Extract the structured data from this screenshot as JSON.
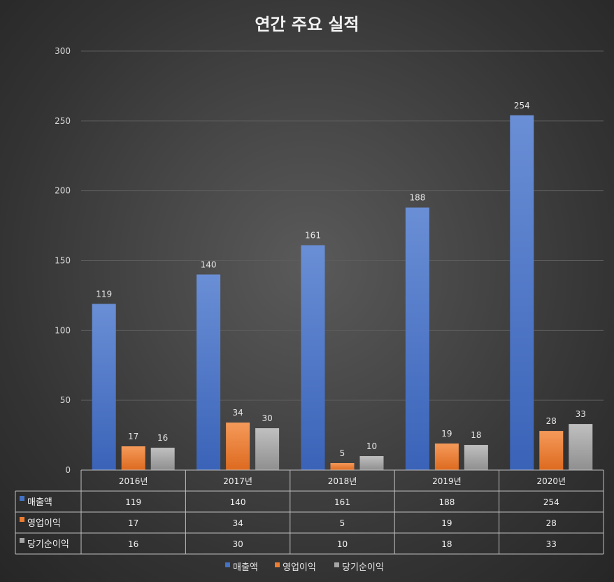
{
  "chart_data": {
    "type": "bar",
    "title": "연간 주요 실적",
    "categories": [
      "2016년",
      "2017년",
      "2018년",
      "2019년",
      "2020년"
    ],
    "series": [
      {
        "name": "매출액",
        "values": [
          119,
          140,
          161,
          188,
          254
        ]
      },
      {
        "name": "영업이익",
        "values": [
          17,
          34,
          5,
          19,
          28
        ]
      },
      {
        "name": "당기순이익",
        "values": [
          16,
          30,
          10,
          18,
          33
        ]
      }
    ],
    "ylim": [
      0,
      300
    ],
    "yticks": [
      0,
      50,
      100,
      150,
      200,
      250,
      300
    ],
    "grid": true,
    "legend": "bottom",
    "data_table": true,
    "colors": {
      "매출액": "#4472c4",
      "영업이익": "#ed7d31",
      "당기순이익": "#a5a5a5"
    }
  }
}
